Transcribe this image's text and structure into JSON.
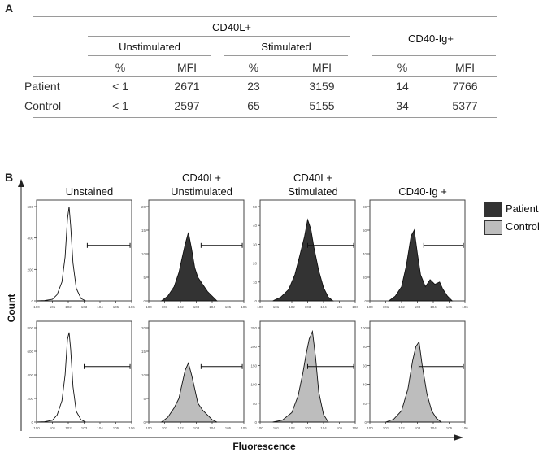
{
  "panel_a": {
    "label": "A",
    "header_cd40l": "CD40L+",
    "header_unstim": "Unstimulated",
    "header_stim": "Stimulated",
    "header_cd40ig": "CD40-Ig+",
    "subheaders": [
      "%",
      "MFI",
      "%",
      "MFI",
      "%",
      "MFI"
    ],
    "rows": [
      {
        "name": "Patient",
        "values": [
          "< 1",
          "2671",
          "23",
          "3159",
          "14",
          "7766"
        ]
      },
      {
        "name": "Control",
        "values": [
          "< 1",
          "2597",
          "65",
          "5155",
          "34",
          "5377"
        ]
      }
    ]
  },
  "panel_b": {
    "label": "B",
    "col_titles": [
      {
        "l1": "",
        "l2": "Unstained"
      },
      {
        "l1": "CD40L+",
        "l2": "Unstimulated"
      },
      {
        "l1": "CD40L+",
        "l2": "Stimulated"
      },
      {
        "l1": "",
        "l2": "CD40-Ig +"
      }
    ],
    "y_axis_label": "Count",
    "x_axis_label": "Fluorescence",
    "legend": [
      {
        "label": "Patient",
        "color": "#333333"
      },
      {
        "label": "Control",
        "color": "#bdbdbd"
      }
    ]
  },
  "chart_data": [
    {
      "type": "area",
      "title": "Unstained - Patient",
      "series_name": "Patient",
      "fill": "none",
      "x_log": [
        0,
        1,
        2,
        3,
        4,
        5,
        6
      ],
      "ylim": [
        0,
        600
      ],
      "yticks": [
        0,
        200,
        400,
        600
      ],
      "gate_log": [
        3.2,
        5.9
      ],
      "x": [
        0,
        0.5,
        1.0,
        1.3,
        1.6,
        1.8,
        1.95,
        2.05,
        2.15,
        2.3,
        2.5,
        2.8,
        3.1
      ],
      "y": [
        0,
        2,
        10,
        40,
        120,
        280,
        520,
        600,
        480,
        240,
        80,
        15,
        0
      ]
    },
    {
      "type": "area",
      "title": "CD40L+ Unstimulated - Patient",
      "series_name": "Patient",
      "fill": "#333333",
      "x_log": [
        0,
        1,
        2,
        3,
        4,
        5,
        6
      ],
      "ylim": [
        0,
        20
      ],
      "yticks": [
        0,
        5,
        10,
        15,
        20
      ],
      "gate_log": [
        3.3,
        5.9
      ],
      "x": [
        0.8,
        1.2,
        1.6,
        1.9,
        2.1,
        2.3,
        2.5,
        2.7,
        2.9,
        3.1,
        3.4,
        3.7,
        4.0,
        4.3
      ],
      "y": [
        0,
        1,
        3,
        6,
        9,
        12,
        14.5,
        11,
        7,
        5,
        3.5,
        2,
        1,
        0
      ]
    },
    {
      "type": "area",
      "title": "CD40L+ Stimulated - Patient",
      "series_name": "Patient",
      "fill": "#333333",
      "x_log": [
        0,
        1,
        2,
        3,
        4,
        5,
        6
      ],
      "ylim": [
        0,
        50
      ],
      "yticks": [
        0,
        10,
        20,
        30,
        40,
        50
      ],
      "gate_log": [
        3.0,
        5.9
      ],
      "x": [
        0.8,
        1.3,
        1.8,
        2.2,
        2.5,
        2.8,
        3.0,
        3.2,
        3.4,
        3.7,
        4.0,
        4.3,
        4.6
      ],
      "y": [
        0,
        2,
        6,
        14,
        24,
        34,
        43,
        38,
        28,
        16,
        7,
        2,
        0
      ]
    },
    {
      "type": "area",
      "title": "CD40-Ig + - Patient",
      "series_name": "Patient",
      "fill": "#333333",
      "x_log": [
        0,
        1,
        2,
        3,
        4,
        5,
        6
      ],
      "ylim": [
        0,
        80
      ],
      "yticks": [
        0,
        20,
        40,
        60,
        80
      ],
      "gate_log": [
        3.4,
        5.9
      ],
      "x": [
        1.2,
        1.6,
        2.0,
        2.3,
        2.6,
        2.8,
        3.0,
        3.2,
        3.5,
        3.8,
        4.1,
        4.4,
        4.6,
        4.9,
        5.2
      ],
      "y": [
        0,
        4,
        12,
        30,
        55,
        60,
        40,
        22,
        12,
        18,
        14,
        16,
        10,
        4,
        0
      ]
    },
    {
      "type": "area",
      "title": "Unstained - Control",
      "series_name": "Control",
      "fill": "none",
      "x_log": [
        0,
        1,
        2,
        3,
        4,
        5,
        6
      ],
      "ylim": [
        0,
        800
      ],
      "yticks": [
        0,
        200,
        400,
        600,
        800
      ],
      "gate_log": [
        3.0,
        5.9
      ],
      "x": [
        0,
        0.5,
        1.0,
        1.3,
        1.6,
        1.8,
        1.95,
        2.05,
        2.15,
        2.3,
        2.5,
        2.8,
        3.1
      ],
      "y": [
        0,
        3,
        15,
        60,
        180,
        400,
        700,
        760,
        620,
        300,
        90,
        20,
        0
      ]
    },
    {
      "type": "area",
      "title": "CD40L+ Unstimulated - Control",
      "series_name": "Control",
      "fill": "#bdbdbd",
      "x_log": [
        0,
        1,
        2,
        3,
        4,
        5,
        6
      ],
      "ylim": [
        0,
        20
      ],
      "yticks": [
        0,
        5,
        10,
        15,
        20
      ],
      "gate_log": [
        3.3,
        5.9
      ],
      "x": [
        0.8,
        1.2,
        1.6,
        1.9,
        2.1,
        2.3,
        2.5,
        2.7,
        2.9,
        3.1,
        3.4,
        3.7,
        4.0,
        4.3
      ],
      "y": [
        0,
        1,
        3,
        5,
        8,
        11,
        12.5,
        10,
        7,
        4,
        2.5,
        1.5,
        0.5,
        0
      ]
    },
    {
      "type": "area",
      "title": "CD40L+ Stimulated - Control",
      "series_name": "Control",
      "fill": "#bdbdbd",
      "x_log": [
        0,
        1,
        2,
        3,
        4,
        5,
        6
      ],
      "ylim": [
        0,
        250
      ],
      "yticks": [
        0,
        50,
        100,
        150,
        200,
        250
      ],
      "gate_log": [
        3.0,
        5.9
      ],
      "x": [
        0.8,
        1.4,
        2.0,
        2.4,
        2.7,
        2.9,
        3.1,
        3.3,
        3.5,
        3.7,
        4.0,
        4.3
      ],
      "y": [
        0,
        5,
        25,
        70,
        130,
        180,
        220,
        240,
        170,
        80,
        20,
        0
      ]
    },
    {
      "type": "area",
      "title": "CD40-Ig + - Control",
      "series_name": "Control",
      "fill": "#bdbdbd",
      "x_log": [
        0,
        1,
        2,
        3,
        4,
        5,
        6
      ],
      "ylim": [
        0,
        100
      ],
      "yticks": [
        0,
        20,
        40,
        60,
        80,
        100
      ],
      "gate_log": [
        3.1,
        5.9
      ],
      "x": [
        1.0,
        1.5,
        2.0,
        2.4,
        2.7,
        2.9,
        3.1,
        3.3,
        3.6,
        3.9,
        4.2,
        4.5
      ],
      "y": [
        0,
        3,
        12,
        35,
        65,
        80,
        85,
        60,
        30,
        12,
        4,
        0
      ]
    }
  ]
}
